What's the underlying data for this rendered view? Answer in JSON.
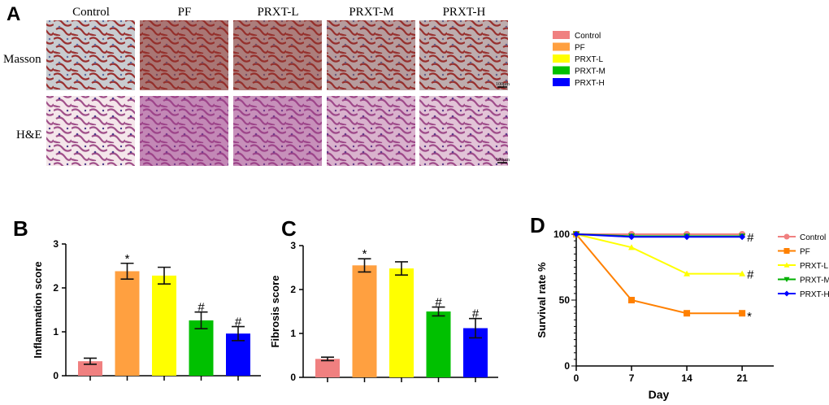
{
  "panel_a": {
    "label": "A",
    "columns": [
      "Control",
      "PF",
      "PRXT-L",
      "PRXT-M",
      "PRXT-H"
    ],
    "rows": [
      "Masson",
      "H&E"
    ],
    "scale_bar": "100μm",
    "legend": [
      {
        "name": "Control",
        "color": "#f08080"
      },
      {
        "name": "PF",
        "color": "#ffa040"
      },
      {
        "name": "PRXT-L",
        "color": "#ffff00"
      },
      {
        "name": "PRXT-M",
        "color": "#00c000"
      },
      {
        "name": "PRXT-H",
        "color": "#0000ff"
      }
    ]
  },
  "chart_data": [
    {
      "panel": "B",
      "type": "bar",
      "ylabel": "Inflammation score",
      "ylim": [
        0,
        3
      ],
      "yticks": [
        "0",
        "1",
        "2",
        "3"
      ],
      "categories": [
        "Control",
        "PF",
        "PRXT-L",
        "PRXT-M",
        "PRXT-H"
      ],
      "colors": [
        "#f08080",
        "#ffa040",
        "#ffff00",
        "#00c000",
        "#0000ff"
      ],
      "values": [
        0.33,
        2.38,
        2.28,
        1.26,
        0.96
      ],
      "errors": [
        0.07,
        0.18,
        0.19,
        0.19,
        0.16
      ],
      "annotations": [
        "",
        "*",
        "",
        "#",
        "#"
      ]
    },
    {
      "panel": "C",
      "type": "bar",
      "ylabel": "Fibrosis score",
      "ylim": [
        0,
        3
      ],
      "yticks": [
        "0",
        "1",
        "2",
        "3"
      ],
      "categories": [
        "Control",
        "PF",
        "PRXT-L",
        "PRXT-M",
        "PRXT-H"
      ],
      "colors": [
        "#f08080",
        "#ffa040",
        "#ffff00",
        "#00c000",
        "#0000ff"
      ],
      "values": [
        0.42,
        2.55,
        2.48,
        1.5,
        1.12
      ],
      "errors": [
        0.04,
        0.15,
        0.15,
        0.1,
        0.22
      ],
      "annotations": [
        "",
        "*",
        "",
        "#",
        "#"
      ]
    },
    {
      "panel": "D",
      "type": "line",
      "xlabel": "Day",
      "ylabel": "Survival rate %",
      "xlim": [
        0,
        25
      ],
      "ylim": [
        0,
        100
      ],
      "xticks": [
        "0",
        "7",
        "14",
        "21"
      ],
      "yticks": [
        "0",
        "50",
        "100"
      ],
      "legend": "right",
      "x": [
        0,
        7,
        14,
        21
      ],
      "series": [
        {
          "name": "Control",
          "color": "#f08080",
          "marker": "circle",
          "values": [
            100,
            100,
            100,
            100
          ]
        },
        {
          "name": "PF",
          "color": "#ff8000",
          "marker": "square",
          "values": [
            100,
            50,
            40,
            40
          ],
          "annotation": "*"
        },
        {
          "name": "PRXT-L",
          "color": "#ffff00",
          "marker": "triangle",
          "values": [
            100,
            90,
            70,
            70
          ],
          "annotation": "#"
        },
        {
          "name": "PRXT-M",
          "color": "#00b000",
          "marker": "triangle-down",
          "values": [
            100,
            98.5,
            98.5,
            98.5
          ]
        },
        {
          "name": "PRXT-H",
          "color": "#0000ff",
          "marker": "diamond",
          "values": [
            100,
            98,
            98,
            98
          ],
          "annotation": "#"
        }
      ]
    }
  ]
}
